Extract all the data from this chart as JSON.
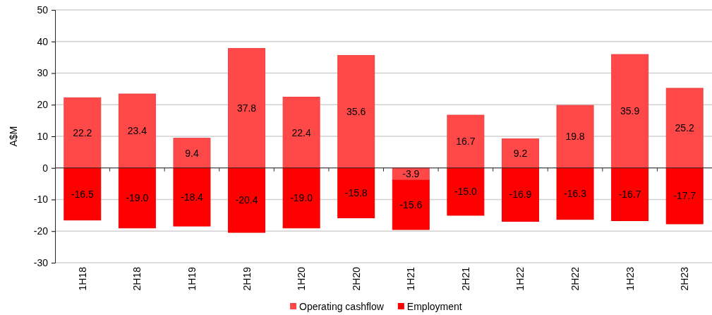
{
  "chart_data": {
    "type": "bar",
    "stacked": true,
    "ylabel": "A$M",
    "categories": [
      "1H18",
      "2H18",
      "1H19",
      "2H19",
      "1H20",
      "2H20",
      "1H21",
      "2H21",
      "1H22",
      "2H22",
      "1H23",
      "2H23"
    ],
    "series": [
      {
        "name": "Operating cashflow",
        "color": "#ff4848",
        "values": [
          22.2,
          23.4,
          9.4,
          37.8,
          22.4,
          35.6,
          -3.9,
          16.7,
          9.2,
          19.8,
          35.9,
          25.2
        ],
        "value_labels": [
          "22.2",
          "23.4",
          "9.4",
          "37.8",
          "22.4",
          "35.6",
          "-3.9",
          "16.7",
          "9.2",
          "19.8",
          "35.9",
          "25.2"
        ]
      },
      {
        "name": "Employment",
        "color": "#ff0000",
        "values": [
          -16.5,
          -19.0,
          -18.4,
          -20.4,
          -19.0,
          -15.8,
          -15.6,
          -15.0,
          -16.9,
          -16.3,
          -16.7,
          -17.7
        ],
        "value_labels": [
          "-16.5",
          "-19.0",
          "-18.4",
          "-20.4",
          "-19.0",
          "-15.8",
          "-15.6",
          "-15.0",
          "-16.9",
          "-16.3",
          "-16.7",
          "-17.7"
        ]
      }
    ],
    "ylim": [
      -30,
      50
    ],
    "yticks": [
      -30,
      -20,
      -10,
      0,
      10,
      20,
      30,
      40,
      50
    ],
    "grid": "y",
    "legend": "bottom"
  }
}
